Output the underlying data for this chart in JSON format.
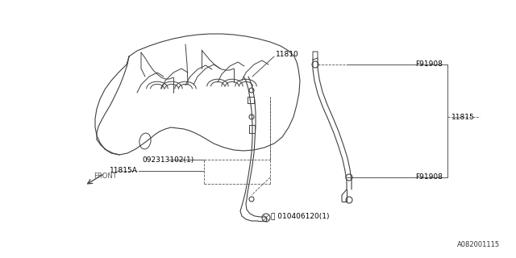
{
  "bg_color": "#ffffff",
  "line_color": "#404040",
  "diagram_id": "A082001115",
  "labels": {
    "bolt_top": "Ⓑ 010406120(1)",
    "f91908_top": "F91908",
    "11815A": "11815A",
    "09231": "092313102(1)",
    "11815": "11815",
    "f91908_mid": "F91908",
    "11810": "11810",
    "front": "FRONT"
  }
}
